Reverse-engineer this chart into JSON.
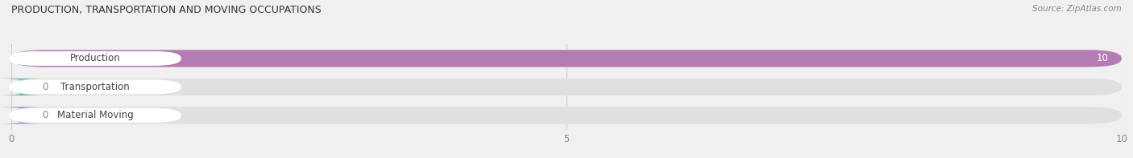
{
  "title": "PRODUCTION, TRANSPORTATION AND MOVING OCCUPATIONS",
  "source": "Source: ZipAtlas.com",
  "categories": [
    "Production",
    "Transportation",
    "Material Moving"
  ],
  "values": [
    10,
    0,
    0
  ],
  "bar_colors": [
    "#b57bb5",
    "#5bbcb5",
    "#9999cc"
  ],
  "background_color": "#f0f0f0",
  "bar_background_color": "#e0e0e0",
  "xlim": [
    0,
    10
  ],
  "xticks": [
    0,
    5,
    10
  ],
  "bar_height": 0.6,
  "figsize": [
    14.06,
    1.97
  ],
  "dpi": 100
}
